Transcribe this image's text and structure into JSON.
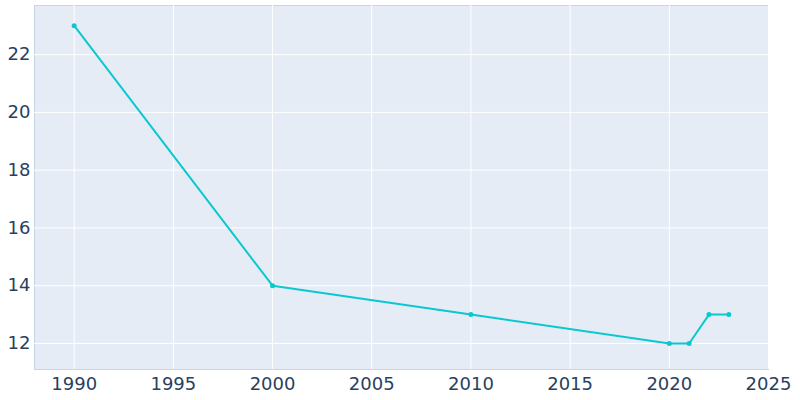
{
  "chart_data": {
    "type": "line",
    "x": [
      1990,
      2000,
      2010,
      2020,
      2021,
      2022,
      2023
    ],
    "values": [
      23,
      14,
      13,
      12,
      12,
      13,
      13
    ],
    "color": "#0bc8cf",
    "marker": "circle",
    "xlim": [
      1988,
      2025
    ],
    "xticks": [
      1990,
      1995,
      2000,
      2005,
      2010,
      2015,
      2020,
      2025
    ],
    "ylim": [
      11.1,
      23.7
    ],
    "yticks": [
      12,
      14,
      16,
      18,
      20,
      22
    ],
    "grid": true
  }
}
